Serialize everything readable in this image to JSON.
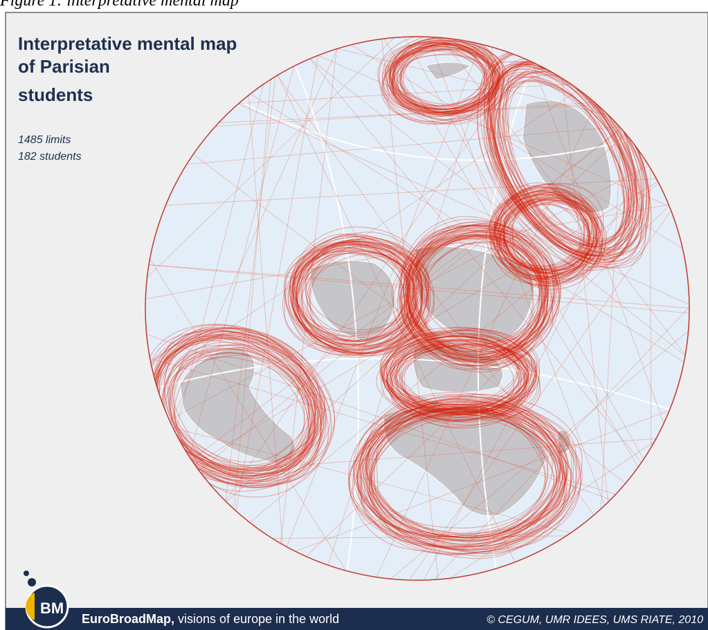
{
  "caption": "Figure 1: interpretative mental map",
  "title_lines": [
    "Interpretative mental map",
    "of Parisian",
    "students"
  ],
  "stats": [
    "1485 limits",
    "182 students"
  ],
  "footer": {
    "brand": "EuroBroadMap,",
    "tagline": "visions of europe in the world",
    "credit": "© CEGUM, UMR IDEES, UMS RIATE, 2010"
  }
}
